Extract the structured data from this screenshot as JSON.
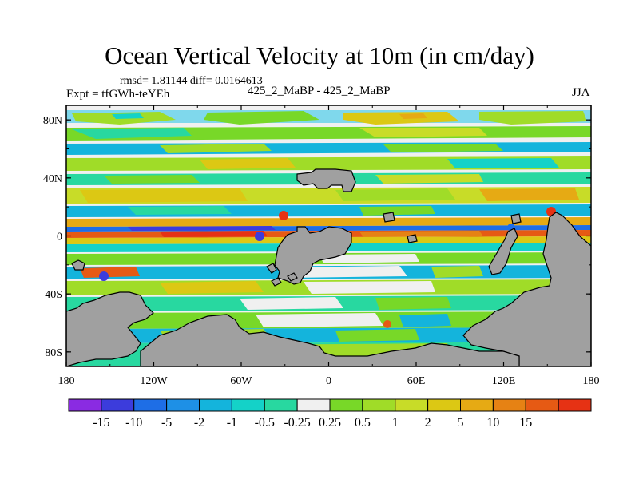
{
  "title": "Ocean Vertical Velocity at 10m (in cm/day)",
  "stats": "rmsd= 1.81144 diff= 0.0164613",
  "expt": "Expt = tfGWh-teYEh",
  "comparison": "425_2_MaBP - 425_2_MaBP",
  "season": "JJA",
  "lat_ticks": [
    "80N",
    "40N",
    "0",
    "40S",
    "80S"
  ],
  "lat_values": [
    80,
    40,
    0,
    -40,
    -80
  ],
  "lon_ticks": [
    "180",
    "120W",
    "60W",
    "0",
    "60E",
    "120E",
    "180"
  ],
  "lon_values": [
    -180,
    -120,
    -60,
    0,
    60,
    120,
    180
  ],
  "colorbar": {
    "colors": [
      "#8a2be2",
      "#3c3cdc",
      "#1e6ee6",
      "#1e90e6",
      "#14b4dc",
      "#14d2c8",
      "#28d8a0",
      "#f0f0f0",
      "#78d828",
      "#a0dc28",
      "#c8dc28",
      "#dcc814",
      "#e6aa14",
      "#e68214",
      "#e65a14",
      "#e63214"
    ],
    "labels": [
      "-15",
      "-10",
      "-5",
      "-2",
      "-1",
      "-0.5",
      "-0.25",
      "0.25",
      "0.5",
      "1",
      "2",
      "5",
      "10",
      "15"
    ]
  },
  "colors": {
    "land": "#a0a0a0",
    "frame": "#000000"
  }
}
